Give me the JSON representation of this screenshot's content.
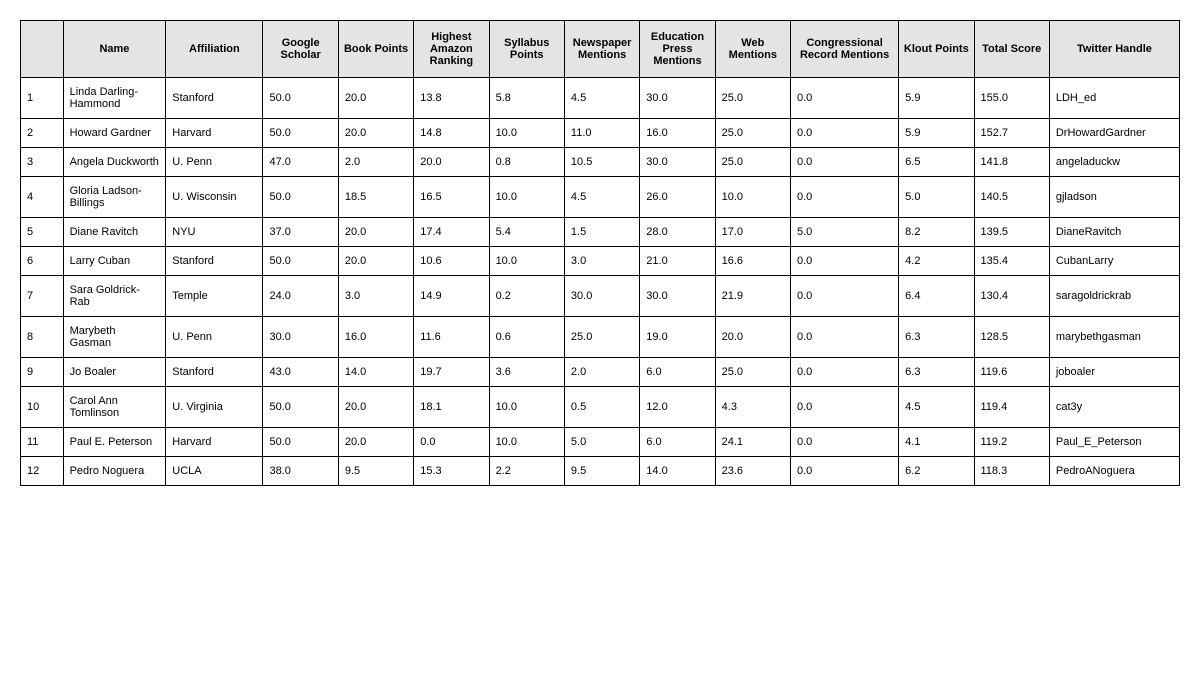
{
  "table": {
    "background_color": "#ffffff",
    "header_bg": "#e4e4e4",
    "border_color": "#000000",
    "font_family": "Arial",
    "body_fontsize": 11,
    "header_fontsize": 11,
    "columns": [
      {
        "key": "rank",
        "label": "",
        "class": "col-rank"
      },
      {
        "key": "name",
        "label": "Name",
        "class": "col-name"
      },
      {
        "key": "affil",
        "label": "Affiliation",
        "class": "col-affil"
      },
      {
        "key": "gs",
        "label": "Google Scholar",
        "class": "col-num"
      },
      {
        "key": "book",
        "label": "Book Points",
        "class": "col-num"
      },
      {
        "key": "amazon",
        "label": "Highest Amazon Ranking",
        "class": "col-num"
      },
      {
        "key": "syll",
        "label": "Syllabus Points",
        "class": "col-num"
      },
      {
        "key": "news",
        "label": "Newspaper Mentions",
        "class": "col-num"
      },
      {
        "key": "edu",
        "label": "Education Press Mentions",
        "class": "col-num"
      },
      {
        "key": "web",
        "label": "Web Mentions",
        "class": "col-num"
      },
      {
        "key": "cong",
        "label": "Congressional Record Mentions",
        "class": "col-wide"
      },
      {
        "key": "klout",
        "label": "Klout Points",
        "class": "col-num"
      },
      {
        "key": "total",
        "label": "Total Score",
        "class": "col-num"
      },
      {
        "key": "twitter",
        "label": "Twitter Handle",
        "class": "col-handle"
      }
    ],
    "rows": [
      {
        "rank": "1",
        "name": "Linda Darling-Hammond",
        "affil": "Stanford",
        "gs": "50.0",
        "book": "20.0",
        "amazon": "13.8",
        "syll": "5.8",
        "news": "4.5",
        "edu": "30.0",
        "web": "25.0",
        "cong": "0.0",
        "klout": "5.9",
        "total": "155.0",
        "twitter": "LDH_ed"
      },
      {
        "rank": "2",
        "name": "Howard Gardner",
        "affil": "Harvard",
        "gs": "50.0",
        "book": "20.0",
        "amazon": "14.8",
        "syll": "10.0",
        "news": "11.0",
        "edu": "16.0",
        "web": "25.0",
        "cong": "0.0",
        "klout": "5.9",
        "total": "152.7",
        "twitter": "DrHowardGardner"
      },
      {
        "rank": "3",
        "name": "Angela Duckworth",
        "affil": "U. Penn",
        "gs": "47.0",
        "book": "2.0",
        "amazon": "20.0",
        "syll": "0.8",
        "news": "10.5",
        "edu": "30.0",
        "web": "25.0",
        "cong": "0.0",
        "klout": "6.5",
        "total": "141.8",
        "twitter": "angeladuckw"
      },
      {
        "rank": "4",
        "name": "Gloria Ladson-Billings",
        "affil": "U. Wisconsin",
        "gs": "50.0",
        "book": "18.5",
        "amazon": "16.5",
        "syll": "10.0",
        "news": "4.5",
        "edu": "26.0",
        "web": "10.0",
        "cong": "0.0",
        "klout": "5.0",
        "total": "140.5",
        "twitter": "gjladson"
      },
      {
        "rank": "5",
        "name": "Diane Ravitch",
        "affil": "NYU",
        "gs": "37.0",
        "book": "20.0",
        "amazon": "17.4",
        "syll": "5.4",
        "news": "1.5",
        "edu": "28.0",
        "web": "17.0",
        "cong": "5.0",
        "klout": "8.2",
        "total": "139.5",
        "twitter": "DianeRavitch"
      },
      {
        "rank": "6",
        "name": "Larry Cuban",
        "affil": "Stanford",
        "gs": "50.0",
        "book": "20.0",
        "amazon": "10.6",
        "syll": "10.0",
        "news": "3.0",
        "edu": "21.0",
        "web": "16.6",
        "cong": "0.0",
        "klout": "4.2",
        "total": "135.4",
        "twitter": "CubanLarry"
      },
      {
        "rank": "7",
        "name": "Sara Goldrick-Rab",
        "affil": "Temple",
        "gs": "24.0",
        "book": "3.0",
        "amazon": "14.9",
        "syll": "0.2",
        "news": "30.0",
        "edu": "30.0",
        "web": "21.9",
        "cong": "0.0",
        "klout": "6.4",
        "total": "130.4",
        "twitter": "saragoldrickrab"
      },
      {
        "rank": "8",
        "name": "Marybeth Gasman",
        "affil": "U. Penn",
        "gs": "30.0",
        "book": "16.0",
        "amazon": "11.6",
        "syll": "0.6",
        "news": "25.0",
        "edu": "19.0",
        "web": "20.0",
        "cong": "0.0",
        "klout": "6.3",
        "total": "128.5",
        "twitter": "marybethgasman"
      },
      {
        "rank": "9",
        "name": "Jo Boaler",
        "affil": "Stanford",
        "gs": "43.0",
        "book": "14.0",
        "amazon": "19.7",
        "syll": "3.6",
        "news": "2.0",
        "edu": "6.0",
        "web": "25.0",
        "cong": "0.0",
        "klout": "6.3",
        "total": "119.6",
        "twitter": "joboaler"
      },
      {
        "rank": "10",
        "name": "Carol Ann Tomlinson",
        "affil": "U. Virginia",
        "gs": "50.0",
        "book": "20.0",
        "amazon": "18.1",
        "syll": "10.0",
        "news": "0.5",
        "edu": "12.0",
        "web": "4.3",
        "cong": "0.0",
        "klout": "4.5",
        "total": "119.4",
        "twitter": "cat3y"
      },
      {
        "rank": "11",
        "name": "Paul E. Peterson",
        "affil": "Harvard",
        "gs": "50.0",
        "book": "20.0",
        "amazon": "0.0",
        "syll": "10.0",
        "news": "5.0",
        "edu": "6.0",
        "web": "24.1",
        "cong": "0.0",
        "klout": "4.1",
        "total": "119.2",
        "twitter": "Paul_E_Peterson"
      },
      {
        "rank": "12",
        "name": "Pedro Noguera",
        "affil": "UCLA",
        "gs": "38.0",
        "book": "9.5",
        "amazon": "15.3",
        "syll": "2.2",
        "news": "9.5",
        "edu": "14.0",
        "web": "23.6",
        "cong": "0.0",
        "klout": "6.2",
        "total": "118.3",
        "twitter": "PedroANoguera"
      }
    ]
  }
}
